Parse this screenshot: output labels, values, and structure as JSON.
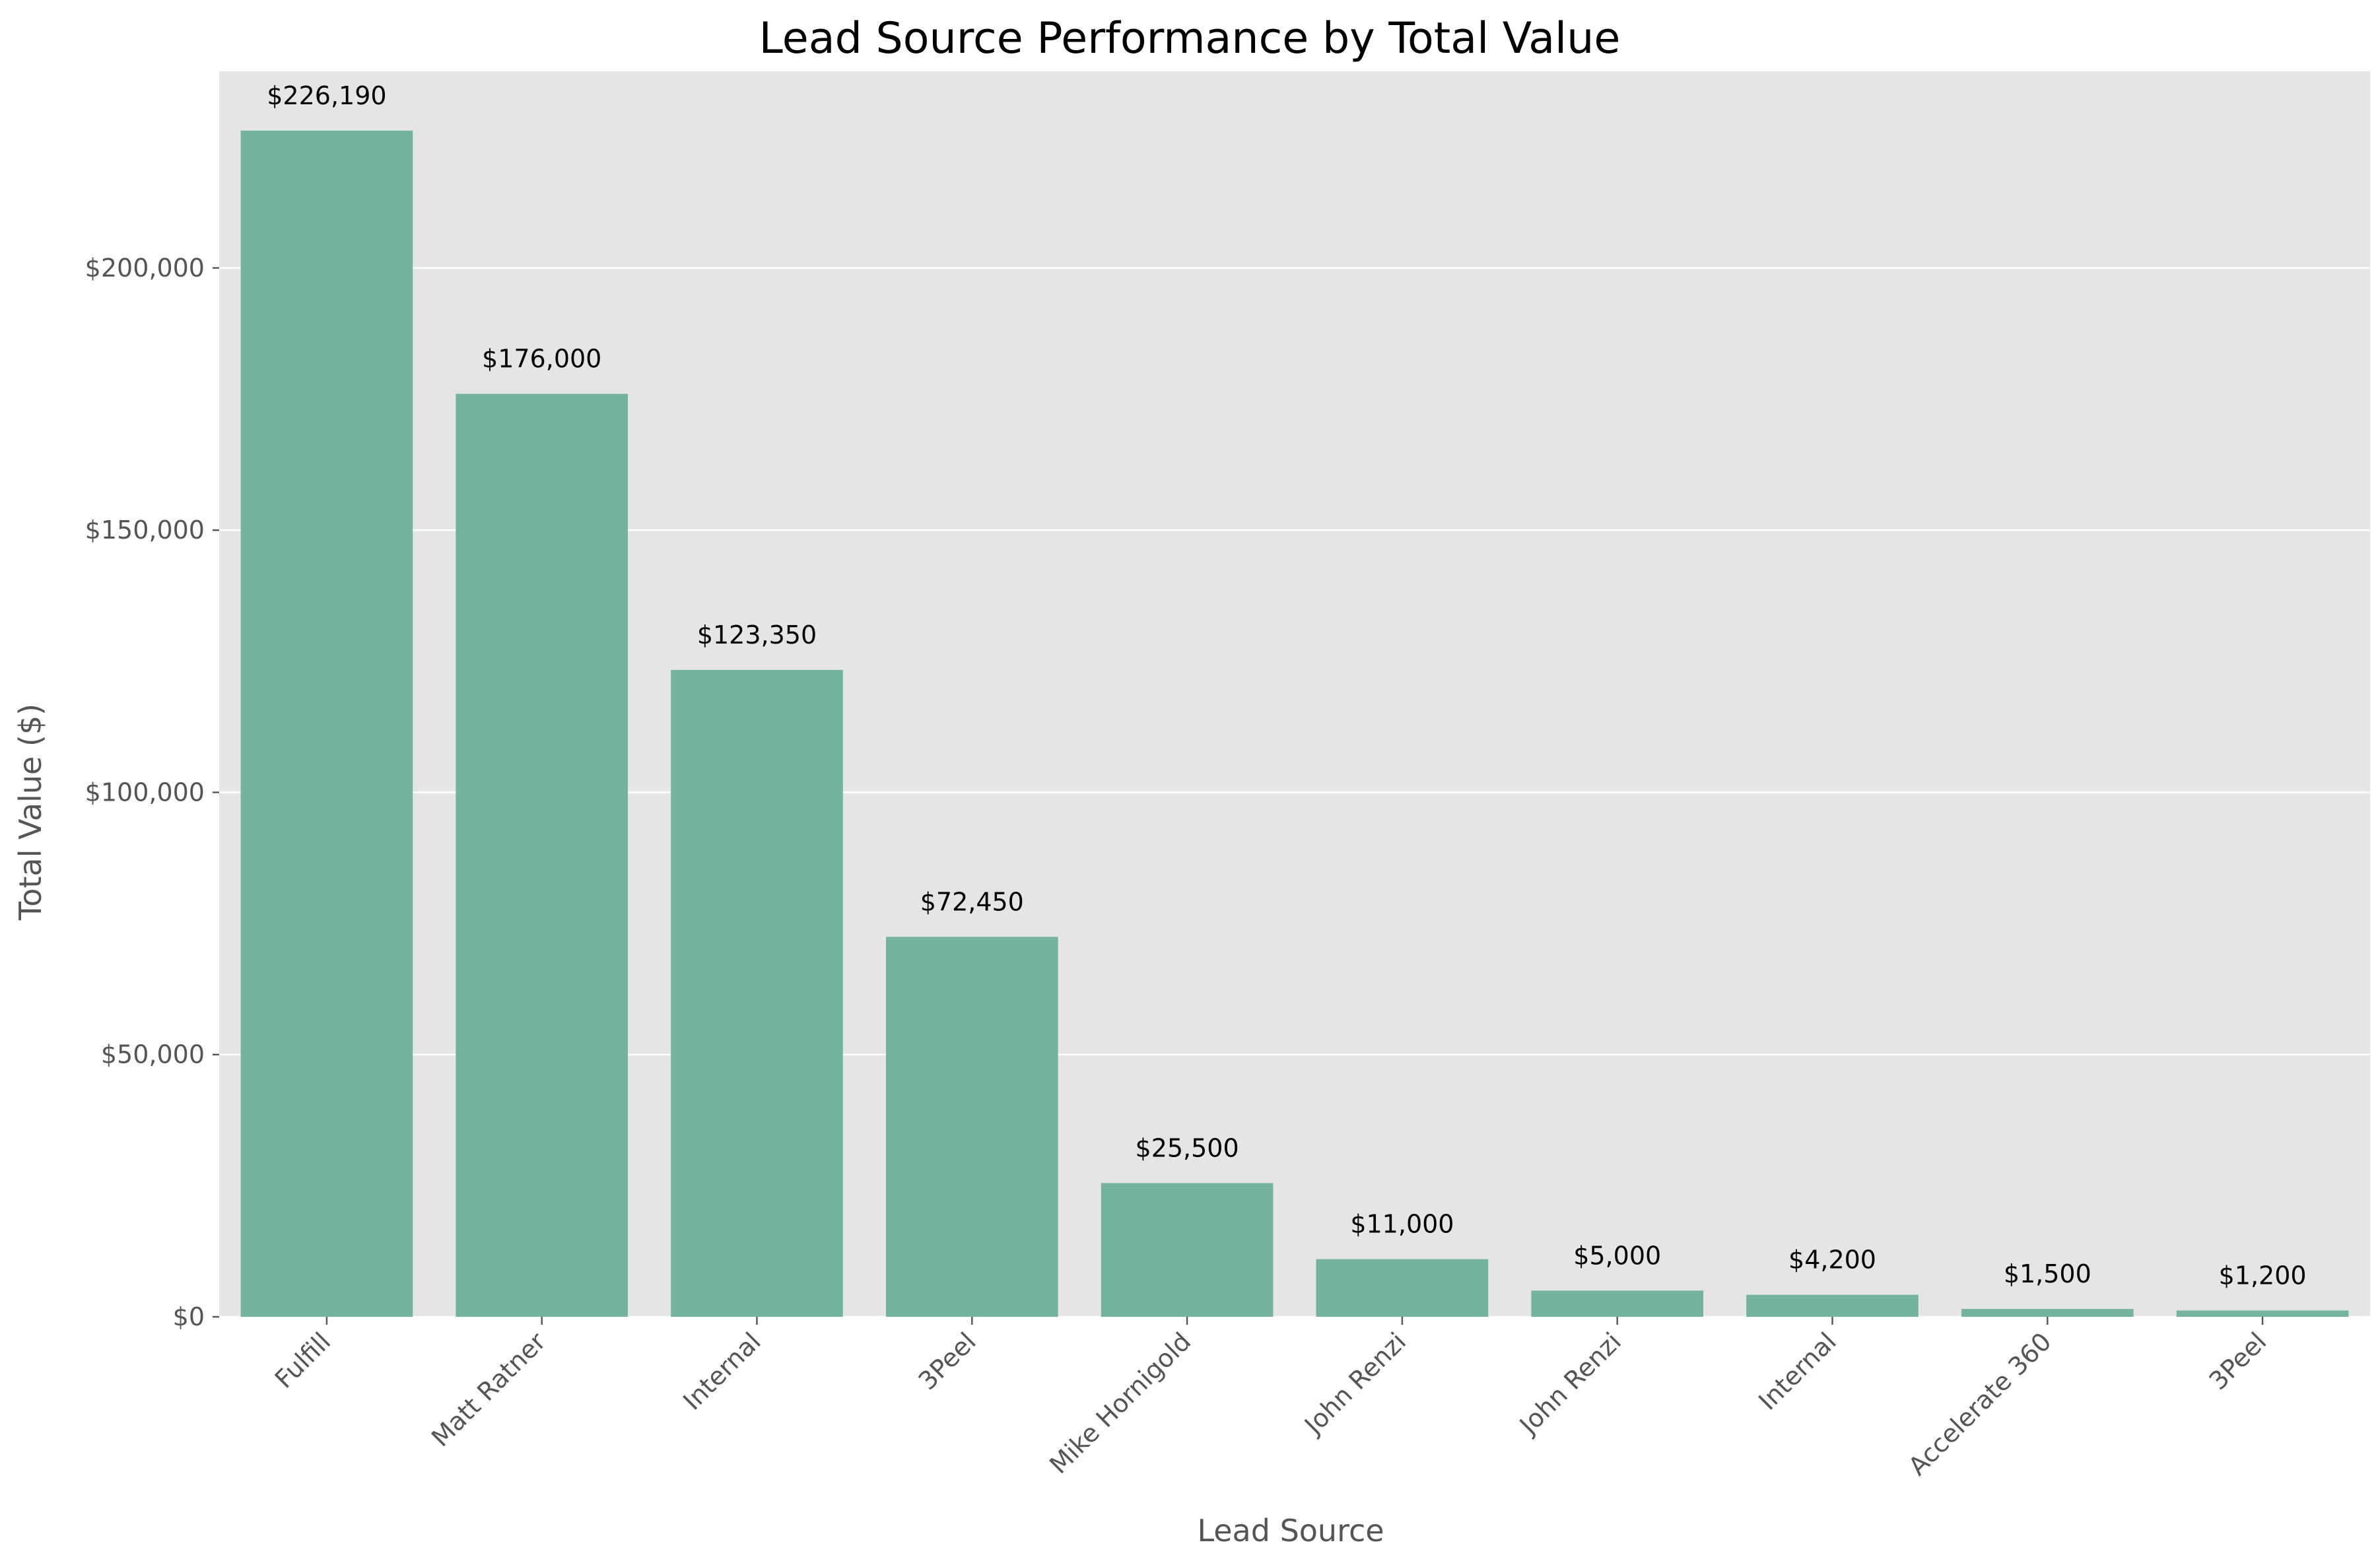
{
  "chart_data": {
    "type": "bar",
    "title": "Lead Source Performance by Total Value",
    "xlabel": "Lead Source",
    "ylabel": "Total Value ($)",
    "categories": [
      "Fulfill",
      "Matt Ratner",
      "Internal",
      "3Peel",
      "Mike Hornigold",
      "John Renzi",
      "John Renzi",
      "Internal",
      "Accelerate 360",
      "3Peel"
    ],
    "values": [
      226190,
      176000,
      123350,
      72450,
      25500,
      11000,
      5000,
      4200,
      1500,
      1200
    ],
    "data_labels": [
      "$226,190",
      "$176,000",
      "$123,350",
      "$72,450",
      "$25,500",
      "$11,000",
      "$5,000",
      "$4,200",
      "$1,500",
      "$1,200"
    ],
    "ylim": [
      0,
      237500
    ],
    "y_ticks": [
      0,
      50000,
      100000,
      150000,
      200000
    ],
    "y_tick_labels": [
      "$0",
      "$50,000",
      "$100,000",
      "$150,000",
      "$200,000"
    ],
    "grid": "horizontal",
    "colors": {
      "bar": "#74b49f",
      "plot_background": "#e5e5e5",
      "grid": "#ffffff",
      "tick_text": "#555555",
      "title_text": "#000000"
    }
  }
}
